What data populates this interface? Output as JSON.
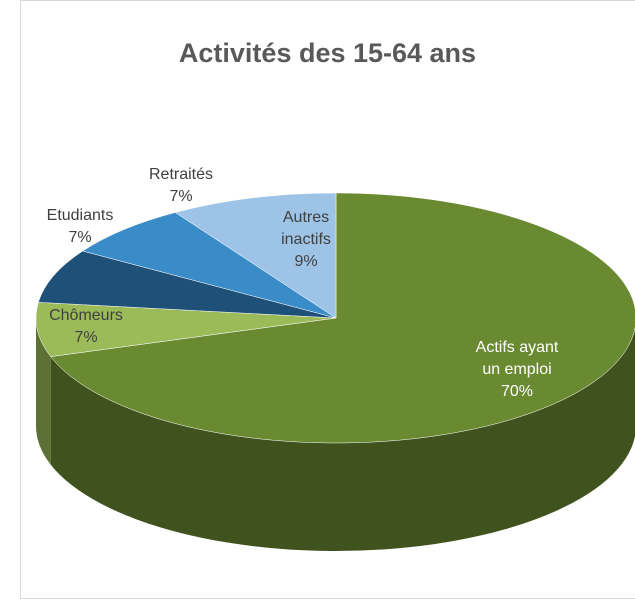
{
  "chart_data": {
    "type": "pie3d",
    "title": "Activités des 15-64 ans",
    "categories": [
      "Actifs ayant un emploi",
      "Chômeurs",
      "Etudiants",
      "Retraités",
      "Autres inactifs"
    ],
    "values": [
      70,
      7,
      7,
      7,
      9
    ],
    "value_labels": [
      "70%",
      "7%",
      "7%",
      "7%",
      "9%"
    ],
    "colors": [
      "#6a8a32",
      "#9bbb59",
      "#1f5078",
      "#3a8cc8",
      "#9dc3e6"
    ]
  }
}
